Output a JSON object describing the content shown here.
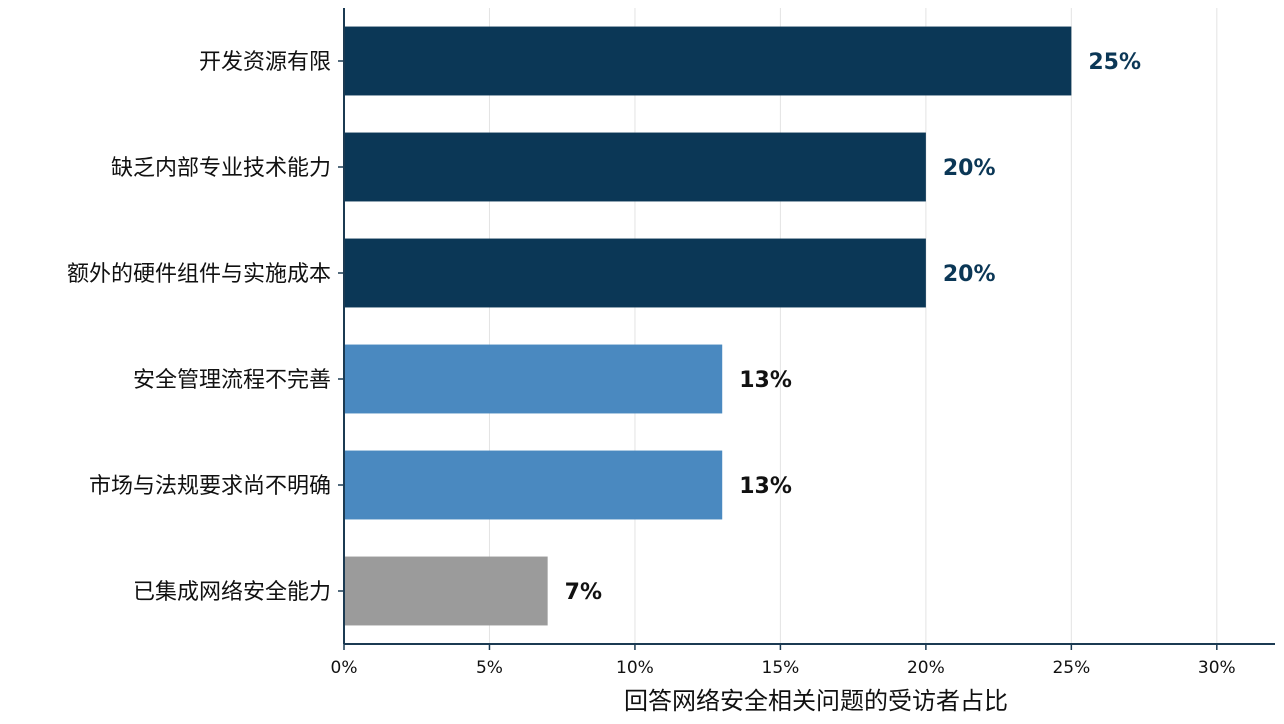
{
  "chart_data": {
    "type": "bar",
    "orientation": "horizontal",
    "categories": [
      "开发资源有限",
      "缺乏内部专业技术能力",
      "额外的硬件组件与实施成本",
      "安全管理流程不完善",
      "市场与法规要求尚不明确",
      "已集成网络安全能力"
    ],
    "values": [
      25,
      20,
      20,
      13,
      13,
      7
    ],
    "value_labels": [
      "25%",
      "20%",
      "20%",
      "13%",
      "13%",
      "7%"
    ],
    "bar_colors": [
      "#0b3756",
      "#0b3756",
      "#0b3756",
      "#4a89c0",
      "#4a89c0",
      "#9b9b9b"
    ],
    "value_label_colors": [
      "#0b3756",
      "#0b3756",
      "#0b3756",
      "#111111",
      "#111111",
      "#111111"
    ],
    "xlabel": "回答网络安全相关问题的受访者占比",
    "ylabel": "",
    "xlim": [
      0,
      32
    ],
    "xticks": [
      0,
      5,
      10,
      15,
      20,
      25,
      30
    ],
    "xtick_labels": [
      "0%",
      "5%",
      "10%",
      "15%",
      "20%",
      "25%",
      "30%"
    ],
    "grid": "vertical",
    "legend": "none"
  }
}
